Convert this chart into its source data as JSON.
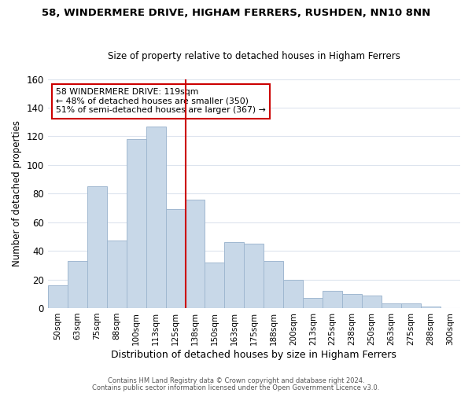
{
  "title": "58, WINDERMERE DRIVE, HIGHAM FERRERS, RUSHDEN, NN10 8NN",
  "subtitle": "Size of property relative to detached houses in Higham Ferrers",
  "xlabel": "Distribution of detached houses by size in Higham Ferrers",
  "ylabel": "Number of detached properties",
  "bar_color": "#c8d8e8",
  "bar_edge_color": "#a0b8d0",
  "categories": [
    "50sqm",
    "63sqm",
    "75sqm",
    "88sqm",
    "100sqm",
    "113sqm",
    "125sqm",
    "138sqm",
    "150sqm",
    "163sqm",
    "175sqm",
    "188sqm",
    "200sqm",
    "213sqm",
    "225sqm",
    "238sqm",
    "250sqm",
    "263sqm",
    "275sqm",
    "288sqm",
    "300sqm"
  ],
  "values": [
    16,
    33,
    85,
    47,
    118,
    127,
    69,
    76,
    32,
    46,
    45,
    33,
    20,
    7,
    12,
    10,
    9,
    3,
    3,
    1,
    0
  ],
  "ylim": [
    0,
    160
  ],
  "yticks": [
    0,
    20,
    40,
    60,
    80,
    100,
    120,
    140,
    160
  ],
  "vline_color": "#cc0000",
  "vline_x_index": 6.5,
  "annotation_title": "58 WINDERMERE DRIVE: 119sqm",
  "annotation_line1": "← 48% of detached houses are smaller (350)",
  "annotation_line2": "51% of semi-detached houses are larger (367) →",
  "annotation_box_color": "#ffffff",
  "annotation_box_edge": "#cc0000",
  "footer1": "Contains HM Land Registry data © Crown copyright and database right 2024.",
  "footer2": "Contains public sector information licensed under the Open Government Licence v3.0.",
  "background_color": "#ffffff",
  "grid_color": "#dde4ee"
}
